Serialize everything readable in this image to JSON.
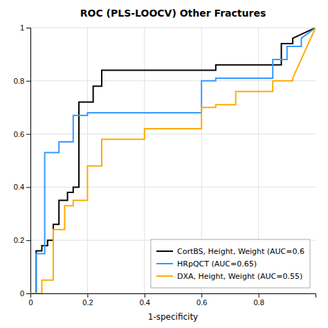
{
  "chart_data": {
    "type": "line",
    "title": "ROC (PLS-LOOCV) Other Fractures",
    "xlabel": "1-specificity",
    "xlim": [
      0,
      1.0
    ],
    "ylim": [
      0,
      1.0
    ],
    "xticks": [
      0,
      0.2,
      0.4,
      0.6,
      0.8
    ],
    "yticks": [
      0,
      0.2,
      0.4,
      0.6,
      0.8,
      1.0
    ],
    "grid": true,
    "legend": "lower right",
    "series": [
      {
        "name": "CortBS, Height, Weight (AUC=0.6",
        "color": "#000000",
        "x": [
          0.0,
          0.02,
          0.02,
          0.04,
          0.04,
          0.06,
          0.06,
          0.08,
          0.08,
          0.1,
          0.1,
          0.13,
          0.13,
          0.15,
          0.15,
          0.17,
          0.17,
          0.22,
          0.22,
          0.25,
          0.25,
          0.6,
          0.6,
          0.65,
          0.65,
          0.82,
          0.82,
          0.88,
          0.88,
          0.92,
          0.92,
          1.0
        ],
        "values": [
          0.0,
          0.0,
          0.16,
          0.16,
          0.18,
          0.18,
          0.2,
          0.2,
          0.26,
          0.26,
          0.35,
          0.35,
          0.38,
          0.38,
          0.4,
          0.4,
          0.72,
          0.72,
          0.78,
          0.78,
          0.84,
          0.84,
          0.84,
          0.84,
          0.86,
          0.86,
          0.86,
          0.86,
          0.94,
          0.94,
          0.96,
          1.0
        ]
      },
      {
        "name": "HRpQCT (AUC=0.65)",
        "color": "#3399ff",
        "x": [
          0.0,
          0.02,
          0.02,
          0.05,
          0.05,
          0.1,
          0.1,
          0.15,
          0.15,
          0.2,
          0.2,
          0.6,
          0.6,
          0.65,
          0.65,
          0.72,
          0.72,
          0.85,
          0.85,
          0.9,
          0.9,
          0.95,
          0.95,
          1.0
        ],
        "values": [
          0.0,
          0.0,
          0.15,
          0.15,
          0.53,
          0.53,
          0.57,
          0.57,
          0.67,
          0.67,
          0.68,
          0.68,
          0.8,
          0.8,
          0.81,
          0.81,
          0.81,
          0.81,
          0.88,
          0.88,
          0.93,
          0.93,
          0.96,
          1.0
        ]
      },
      {
        "name": "DXA, Height, Weight (AUC=0.55)",
        "color": "#ffaa00",
        "x": [
          0.0,
          0.04,
          0.04,
          0.08,
          0.08,
          0.12,
          0.12,
          0.15,
          0.15,
          0.2,
          0.2,
          0.25,
          0.25,
          0.4,
          0.4,
          0.6,
          0.6,
          0.65,
          0.65,
          0.72,
          0.72,
          0.8,
          0.8,
          0.85,
          0.85,
          0.92,
          0.92,
          1.0
        ],
        "values": [
          0.0,
          0.0,
          0.05,
          0.05,
          0.24,
          0.24,
          0.33,
          0.33,
          0.35,
          0.35,
          0.48,
          0.48,
          0.58,
          0.58,
          0.62,
          0.62,
          0.7,
          0.7,
          0.71,
          0.71,
          0.76,
          0.76,
          0.76,
          0.76,
          0.8,
          0.8,
          0.81,
          1.0
        ]
      }
    ]
  }
}
